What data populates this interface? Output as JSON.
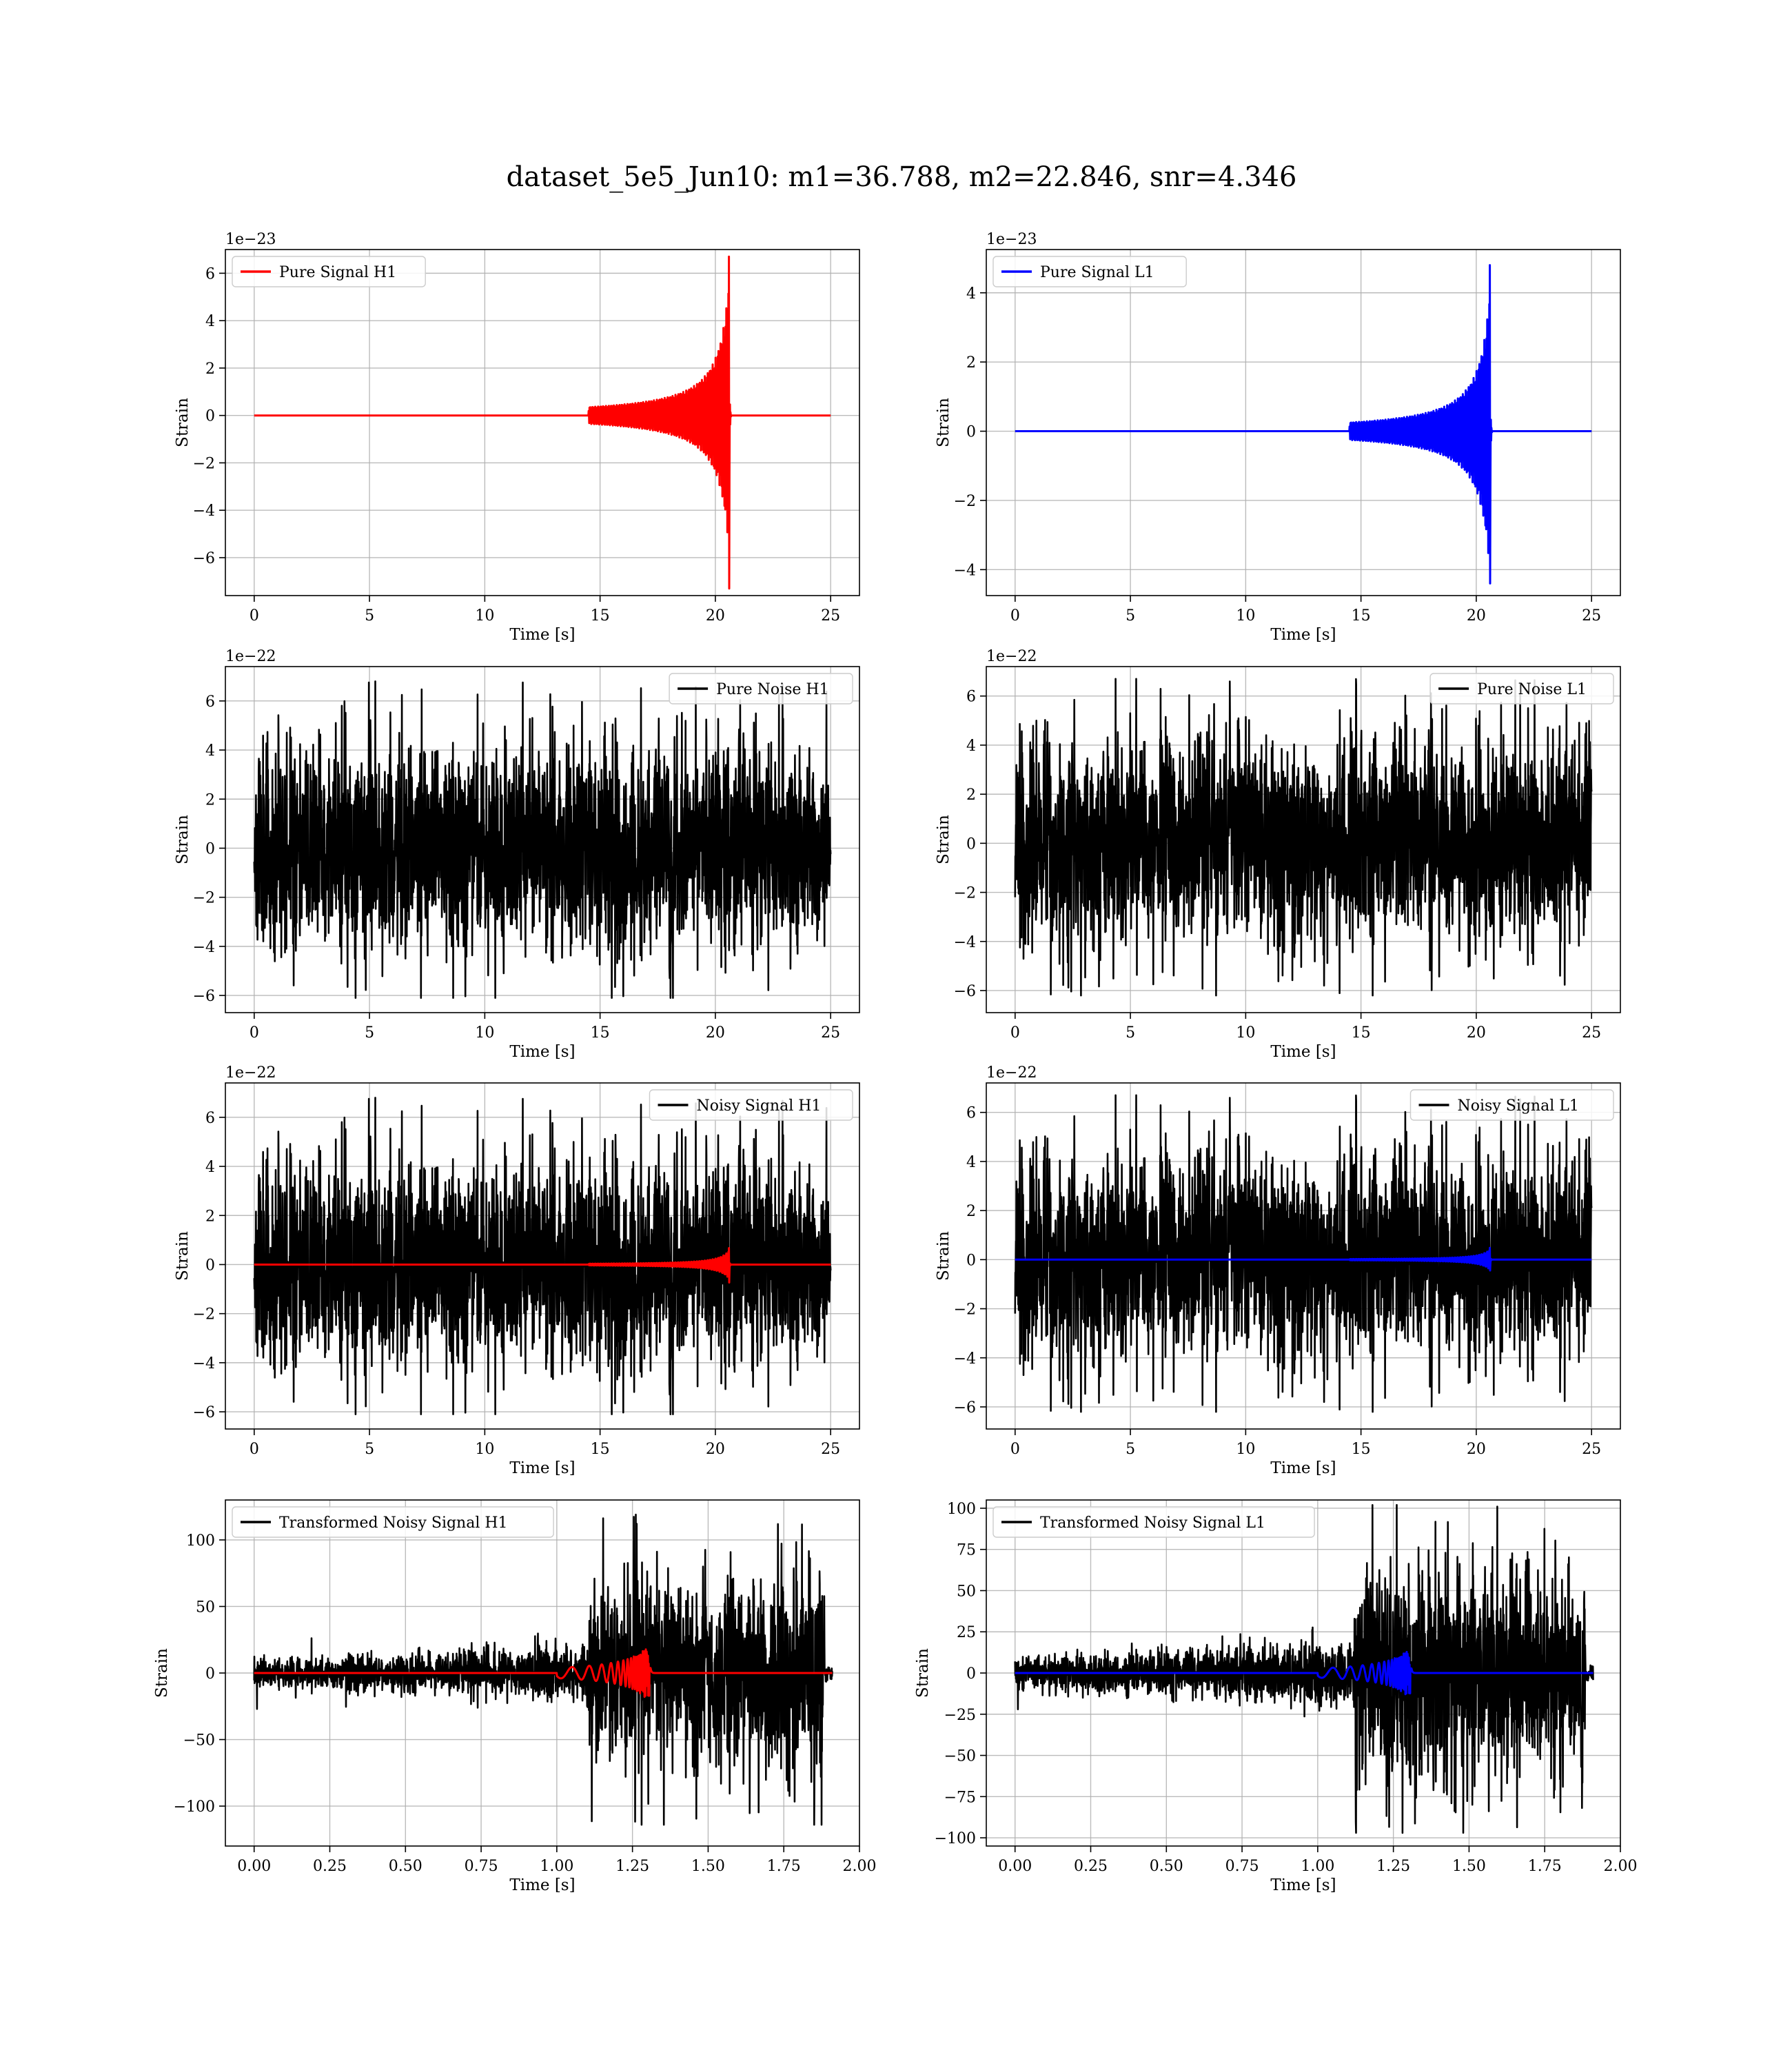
{
  "figure": {
    "title": "dataset_5e5_Jun10: m1=36.788, m2=22.846, snr=4.346"
  },
  "chart_data": [
    {
      "id": "pure-signal-h1",
      "type": "line",
      "xlabel": "Time [s]",
      "ylabel": "Strain",
      "offset_text": "1e−23",
      "xlim": [
        -1.25,
        26.25
      ],
      "ylim": [
        -7.6,
        7.0
      ],
      "xticks": [
        0,
        5,
        10,
        15,
        20,
        25
      ],
      "xtick_labels": [
        "0",
        "5",
        "10",
        "15",
        "20",
        "25"
      ],
      "yticks": [
        -6,
        -4,
        -2,
        0,
        2,
        4,
        6
      ],
      "ytick_labels": [
        "−6",
        "−4",
        "−2",
        "0",
        "2",
        "4",
        "6"
      ],
      "legend_loc": "upper-left",
      "series": [
        {
          "name": "Pure Signal H1",
          "color": "#ff0000",
          "kind": "chirp",
          "x_range": [
            0,
            25
          ],
          "t_merge": 20.6,
          "peak": 6.7,
          "trough": -7.3,
          "env_mid": 2.1,
          "start": 14.5
        }
      ]
    },
    {
      "id": "pure-signal-l1",
      "type": "line",
      "xlabel": "Time [s]",
      "ylabel": "Strain",
      "offset_text": "1e−23",
      "xlim": [
        -1.25,
        26.25
      ],
      "ylim": [
        -4.75,
        5.25
      ],
      "xticks": [
        0,
        5,
        10,
        15,
        20,
        25
      ],
      "xtick_labels": [
        "0",
        "5",
        "10",
        "15",
        "20",
        "25"
      ],
      "yticks": [
        -4,
        -2,
        0,
        2,
        4
      ],
      "ytick_labels": [
        "−4",
        "−2",
        "0",
        "2",
        "4"
      ],
      "legend_loc": "upper-left",
      "series": [
        {
          "name": "Pure Signal L1",
          "color": "#0000ff",
          "kind": "chirp",
          "x_range": [
            0,
            25
          ],
          "t_merge": 20.6,
          "peak": 4.8,
          "trough": -4.4,
          "env_mid": 1.5,
          "start": 14.5
        }
      ]
    },
    {
      "id": "pure-noise-h1",
      "type": "line",
      "xlabel": "Time [s]",
      "ylabel": "Strain",
      "offset_text": "1e−22",
      "xlim": [
        -1.25,
        26.25
      ],
      "ylim": [
        -6.7,
        7.4
      ],
      "xticks": [
        0,
        5,
        10,
        15,
        20,
        25
      ],
      "xtick_labels": [
        "0",
        "5",
        "10",
        "15",
        "20",
        "25"
      ],
      "yticks": [
        -6,
        -4,
        -2,
        0,
        2,
        4,
        6
      ],
      "ytick_labels": [
        "−6",
        "−4",
        "−2",
        "0",
        "2",
        "4",
        "6"
      ],
      "legend_loc": "upper-right",
      "series": [
        {
          "name": "Pure Noise H1",
          "color": "#000000",
          "kind": "noise",
          "x_range": [
            0,
            25
          ],
          "core": 3.2,
          "max": 6.8,
          "min": -6.1,
          "seed": 11
        }
      ]
    },
    {
      "id": "pure-noise-l1",
      "type": "line",
      "xlabel": "Time [s]",
      "ylabel": "Strain",
      "offset_text": "1e−22",
      "xlim": [
        -1.25,
        26.25
      ],
      "ylim": [
        -6.9,
        7.2
      ],
      "xticks": [
        0,
        5,
        10,
        15,
        20,
        25
      ],
      "xtick_labels": [
        "0",
        "5",
        "10",
        "15",
        "20",
        "25"
      ],
      "yticks": [
        -6,
        -4,
        -2,
        0,
        2,
        4,
        6
      ],
      "ytick_labels": [
        "−6",
        "−4",
        "−2",
        "0",
        "2",
        "4",
        "6"
      ],
      "legend_loc": "upper-right",
      "series": [
        {
          "name": "Pure Noise L1",
          "color": "#000000",
          "kind": "noise",
          "x_range": [
            0,
            25
          ],
          "core": 3.2,
          "max": 6.7,
          "min": -6.2,
          "seed": 23
        }
      ]
    },
    {
      "id": "noisy-signal-h1",
      "type": "line",
      "xlabel": "Time [s]",
      "ylabel": "Strain",
      "offset_text": "1e−22",
      "xlim": [
        -1.25,
        26.25
      ],
      "ylim": [
        -6.7,
        7.4
      ],
      "xticks": [
        0,
        5,
        10,
        15,
        20,
        25
      ],
      "xtick_labels": [
        "0",
        "5",
        "10",
        "15",
        "20",
        "25"
      ],
      "yticks": [
        -6,
        -4,
        -2,
        0,
        2,
        4,
        6
      ],
      "ytick_labels": [
        "−6",
        "−4",
        "−2",
        "0",
        "2",
        "4",
        "6"
      ],
      "legend_loc": "upper-right",
      "series": [
        {
          "name": "Noisy Signal H1",
          "color": "#000000",
          "kind": "noise",
          "x_range": [
            0,
            25
          ],
          "core": 3.2,
          "max": 6.8,
          "min": -6.1,
          "seed": 11
        },
        {
          "name": "",
          "color": "#ff0000",
          "kind": "chirp",
          "x_range": [
            0,
            25
          ],
          "t_merge": 20.6,
          "peak": 0.67,
          "trough": -0.73,
          "env_mid": 0.21,
          "start": 14.5
        }
      ]
    },
    {
      "id": "noisy-signal-l1",
      "type": "line",
      "xlabel": "Time [s]",
      "ylabel": "Strain",
      "offset_text": "1e−22",
      "xlim": [
        -1.25,
        26.25
      ],
      "ylim": [
        -6.9,
        7.2
      ],
      "xticks": [
        0,
        5,
        10,
        15,
        20,
        25
      ],
      "xtick_labels": [
        "0",
        "5",
        "10",
        "15",
        "20",
        "25"
      ],
      "yticks": [
        -6,
        -4,
        -2,
        0,
        2,
        4,
        6
      ],
      "ytick_labels": [
        "−6",
        "−4",
        "−2",
        "0",
        "2",
        "4",
        "6"
      ],
      "legend_loc": "upper-right",
      "series": [
        {
          "name": "Noisy Signal L1",
          "color": "#000000",
          "kind": "noise",
          "x_range": [
            0,
            25
          ],
          "core": 3.2,
          "max": 6.7,
          "min": -6.2,
          "seed": 23
        },
        {
          "name": "",
          "color": "#0000ff",
          "kind": "chirp",
          "x_range": [
            0,
            25
          ],
          "t_merge": 20.6,
          "peak": 0.48,
          "trough": -0.44,
          "env_mid": 0.15,
          "start": 14.5
        }
      ]
    },
    {
      "id": "transformed-noisy-signal-h1",
      "type": "line",
      "xlabel": "Time [s]",
      "ylabel": "Strain",
      "offset_text": "",
      "xlim": [
        -0.095,
        2.0
      ],
      "ylim": [
        -130,
        130
      ],
      "xticks": [
        0,
        0.25,
        0.5,
        0.75,
        1.0,
        1.25,
        1.5,
        1.75,
        2.0
      ],
      "xtick_labels": [
        "0.00",
        "0.25",
        "0.50",
        "0.75",
        "1.00",
        "1.25",
        "1.50",
        "1.75",
        "2.00"
      ],
      "yticks": [
        -100,
        -50,
        0,
        50,
        100
      ],
      "ytick_labels": [
        "−100",
        "−50",
        "0",
        "50",
        "100"
      ],
      "legend_loc": "upper-left",
      "series": [
        {
          "name": "Transformed Noisy Signal H1",
          "color": "#000000",
          "kind": "tnoise",
          "x_range": [
            0,
            1.91
          ],
          "step": 1.1,
          "lo_core": 5,
          "lo_max": 27,
          "hi_core": 35,
          "hi_max": 119,
          "hi_min": -114,
          "seed": 37
        },
        {
          "name": "",
          "color": "#ff0000",
          "kind": "tchirp",
          "x_range": [
            0,
            1.91
          ],
          "t_merge": 1.31,
          "peak": 18,
          "start": 1.0
        }
      ]
    },
    {
      "id": "transformed-noisy-signal-l1",
      "type": "line",
      "xlabel": "Time [s]",
      "ylabel": "Strain",
      "offset_text": "",
      "xlim": [
        -0.095,
        2.0
      ],
      "ylim": [
        -105,
        105
      ],
      "xticks": [
        0,
        0.25,
        0.5,
        0.75,
        1.0,
        1.25,
        1.5,
        1.75,
        2.0
      ],
      "xtick_labels": [
        "0.00",
        "0.25",
        "0.50",
        "0.75",
        "1.00",
        "1.25",
        "1.50",
        "1.75",
        "2.00"
      ],
      "yticks": [
        -100,
        -75,
        -50,
        -25,
        0,
        25,
        50,
        75,
        100
      ],
      "ytick_labels": [
        "−100",
        "−75",
        "−50",
        "−25",
        "0",
        "25",
        "50",
        "75",
        "100"
      ],
      "legend_loc": "upper-left",
      "series": [
        {
          "name": "Transformed Noisy Signal L1",
          "color": "#000000",
          "kind": "tnoise",
          "x_range": [
            0,
            1.91
          ],
          "step": 1.12,
          "lo_core": 5,
          "lo_max": 22,
          "hi_core": 32,
          "hi_max": 102,
          "hi_min": -97,
          "seed": 53
        },
        {
          "name": "",
          "color": "#0000ff",
          "kind": "tchirp",
          "x_range": [
            0,
            1.91
          ],
          "t_merge": 1.31,
          "peak": 13,
          "start": 1.0
        }
      ]
    }
  ]
}
